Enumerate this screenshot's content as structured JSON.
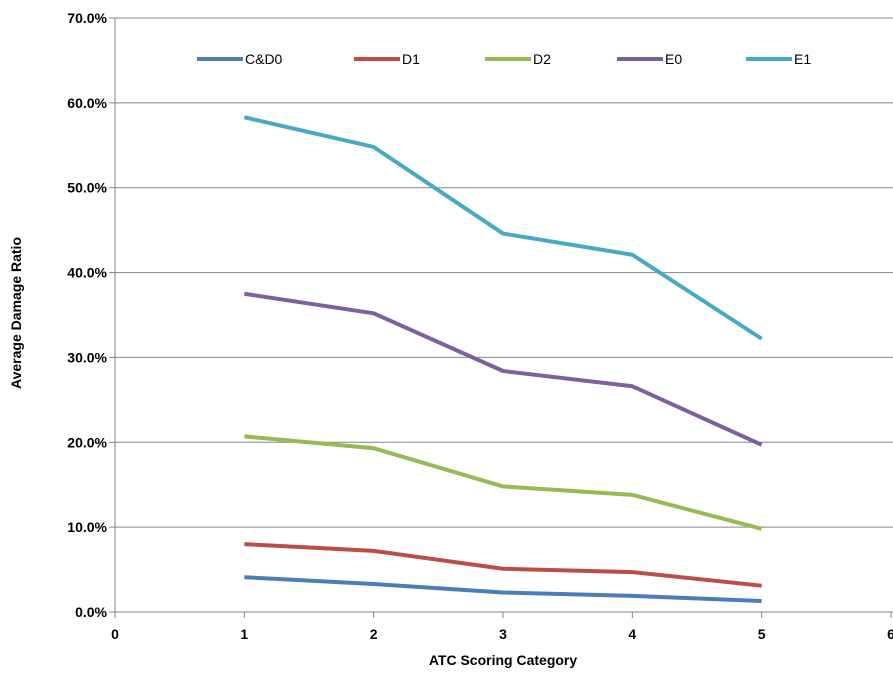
{
  "chart_data": {
    "type": "line",
    "title": "",
    "xlabel": "ATC Scoring Category",
    "ylabel": "Average Damage  Ratio",
    "xlim": [
      0,
      6
    ],
    "ylim": [
      0,
      70
    ],
    "x_ticks": [
      "0",
      "1",
      "2",
      "3",
      "4",
      "5",
      "6"
    ],
    "y_ticks": [
      "0.0%",
      "10.0%",
      "20.0%",
      "30.0%",
      "40.0%",
      "50.0%",
      "60.0%",
      "70.0%"
    ],
    "grid": "horizontal",
    "legend_position": "top",
    "x": [
      1,
      2,
      3,
      4,
      5
    ],
    "series": [
      {
        "name": "C&D0",
        "color": "#4a7ebb",
        "values": [
          4.1,
          3.3,
          2.3,
          1.9,
          1.3
        ]
      },
      {
        "name": "D1",
        "color": "#be4b48",
        "values": [
          8.0,
          7.2,
          5.1,
          4.7,
          3.1
        ]
      },
      {
        "name": "D2",
        "color": "#98b954",
        "values": [
          20.7,
          19.3,
          14.8,
          13.8,
          9.8
        ]
      },
      {
        "name": "E0",
        "color": "#7d60a0",
        "values": [
          37.5,
          35.2,
          28.4,
          26.6,
          19.7
        ]
      },
      {
        "name": "E1",
        "color": "#46aac5",
        "values": [
          58.3,
          54.8,
          44.6,
          42.1,
          32.2
        ]
      }
    ]
  }
}
